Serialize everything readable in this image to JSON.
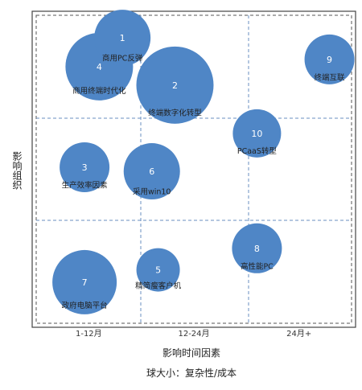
{
  "chart_data": {
    "type": "scatter",
    "subtype": "bubble",
    "xlabel": "影响时间因素",
    "ylabel": "影响组织",
    "caption": "球大小：复杂性/成本",
    "x_categories": [
      "1-12月",
      "12-24月",
      "24月+"
    ],
    "grid": true,
    "bubble_color": "#4f86c6",
    "points": [
      {
        "id": "1",
        "label": "商用PC反弹",
        "x": 0.82,
        "y": 2.78,
        "size": 35
      },
      {
        "id": "2",
        "label": "终端数字化转型",
        "x": 1.32,
        "y": 2.32,
        "size": 48
      },
      {
        "id": "3",
        "label": "生产效率因素",
        "x": 0.46,
        "y": 1.52,
        "size": 31
      },
      {
        "id": "4",
        "label": "商用终端时代化",
        "x": 0.6,
        "y": 2.5,
        "size": 42
      },
      {
        "id": "5",
        "label": "精简瘦客户机",
        "x": 1.16,
        "y": 0.52,
        "size": 27
      },
      {
        "id": "6",
        "label": "采用win10",
        "x": 1.1,
        "y": 1.48,
        "size": 35
      },
      {
        "id": "7",
        "label": "政府电脑平台",
        "x": 0.46,
        "y": 0.4,
        "size": 40
      },
      {
        "id": "8",
        "label": "高性能PC",
        "x": 2.1,
        "y": 0.73,
        "size": 31
      },
      {
        "id": "9",
        "label": "终端互联",
        "x": 2.79,
        "y": 2.57,
        "size": 31
      },
      {
        "id": "10",
        "label": "PCaaS转型",
        "x": 2.1,
        "y": 1.85,
        "size": 30
      }
    ]
  }
}
